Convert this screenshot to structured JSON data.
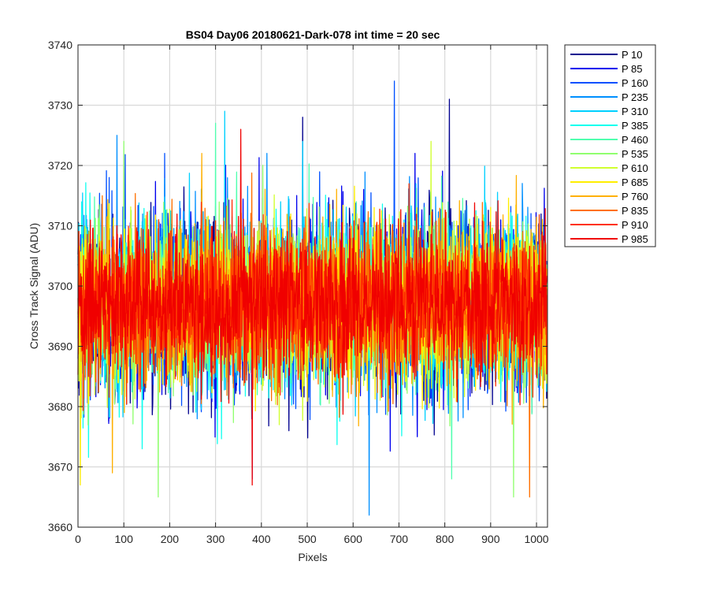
{
  "chart_data": {
    "type": "line",
    "title": "BS04 Day06 20180621-Dark-078 int time = 20 sec",
    "xlabel": "Pixels",
    "ylabel": "Cross Track Signal (ADU)",
    "xlim": [
      0,
      1024
    ],
    "ylim": [
      3660,
      3740
    ],
    "x_ticks": [
      0,
      100,
      200,
      300,
      400,
      500,
      600,
      700,
      800,
      900,
      1000
    ],
    "y_ticks": [
      3660,
      3670,
      3680,
      3690,
      3700,
      3710,
      3720,
      3730,
      3740
    ],
    "grid": true,
    "legend_position": "outside-right-top",
    "x_count": 1024,
    "series": [
      {
        "name": "P 10",
        "color": "#00008f",
        "mean": 3697,
        "spread": 7.2,
        "peaks": [
          {
            "x": 490,
            "y": 3728
          },
          {
            "x": 810,
            "y": 3731
          },
          {
            "x": 460,
            "y": 3676
          }
        ]
      },
      {
        "name": "P 85",
        "color": "#0000ee",
        "mean": 3697,
        "spread": 7.2,
        "peaks": [
          {
            "x": 380,
            "y": 3668
          },
          {
            "x": 740,
            "y": 3675
          }
        ]
      },
      {
        "name": "P 160",
        "color": "#0050ff",
        "mean": 3697,
        "spread": 7.0,
        "peaks": [
          {
            "x": 690,
            "y": 3734
          },
          {
            "x": 530,
            "y": 3684
          }
        ]
      },
      {
        "name": "P 235",
        "color": "#0090ff",
        "mean": 3697,
        "spread": 7.0,
        "peaks": [
          {
            "x": 635,
            "y": 3662
          },
          {
            "x": 85,
            "y": 3725
          }
        ]
      },
      {
        "name": "P 310",
        "color": "#00d0ff",
        "mean": 3697,
        "spread": 6.8,
        "peaks": [
          {
            "x": 320,
            "y": 3729
          },
          {
            "x": 490,
            "y": 3724
          }
        ]
      },
      {
        "name": "P 385",
        "color": "#10ffef",
        "mean": 3697,
        "spread": 6.8,
        "peaks": [
          {
            "x": 140,
            "y": 3673
          }
        ]
      },
      {
        "name": "P 460",
        "color": "#50ffaf",
        "mean": 3697,
        "spread": 6.6,
        "peaks": [
          {
            "x": 300,
            "y": 3727
          },
          {
            "x": 815,
            "y": 3668
          }
        ]
      },
      {
        "name": "P 535",
        "color": "#90ff6f",
        "mean": 3697,
        "spread": 6.6,
        "peaks": [
          {
            "x": 175,
            "y": 3665
          },
          {
            "x": 950,
            "y": 3665
          },
          {
            "x": 100,
            "y": 3724
          }
        ]
      },
      {
        "name": "P 610",
        "color": "#d0ff2f",
        "mean": 3697,
        "spread": 6.4,
        "peaks": [
          {
            "x": 770,
            "y": 3724
          }
        ]
      },
      {
        "name": "P 685",
        "color": "#ffee00",
        "mean": 3697,
        "spread": 6.4,
        "peaks": [
          {
            "x": 5,
            "y": 3667
          }
        ]
      },
      {
        "name": "P 760",
        "color": "#ffb000",
        "mean": 3697,
        "spread": 6.2,
        "peaks": [
          {
            "x": 75,
            "y": 3669
          },
          {
            "x": 270,
            "y": 3722
          }
        ]
      },
      {
        "name": "P 835",
        "color": "#ff7000",
        "mean": 3697,
        "spread": 6.2,
        "peaks": [
          {
            "x": 985,
            "y": 3665
          }
        ]
      },
      {
        "name": "P 910",
        "color": "#ff3000",
        "mean": 3697,
        "spread": 6.0,
        "peaks": []
      },
      {
        "name": "P 985",
        "color": "#f00000",
        "mean": 3697,
        "spread": 6.0,
        "peaks": [
          {
            "x": 355,
            "y": 3726
          },
          {
            "x": 380,
            "y": 3667
          }
        ]
      }
    ]
  }
}
